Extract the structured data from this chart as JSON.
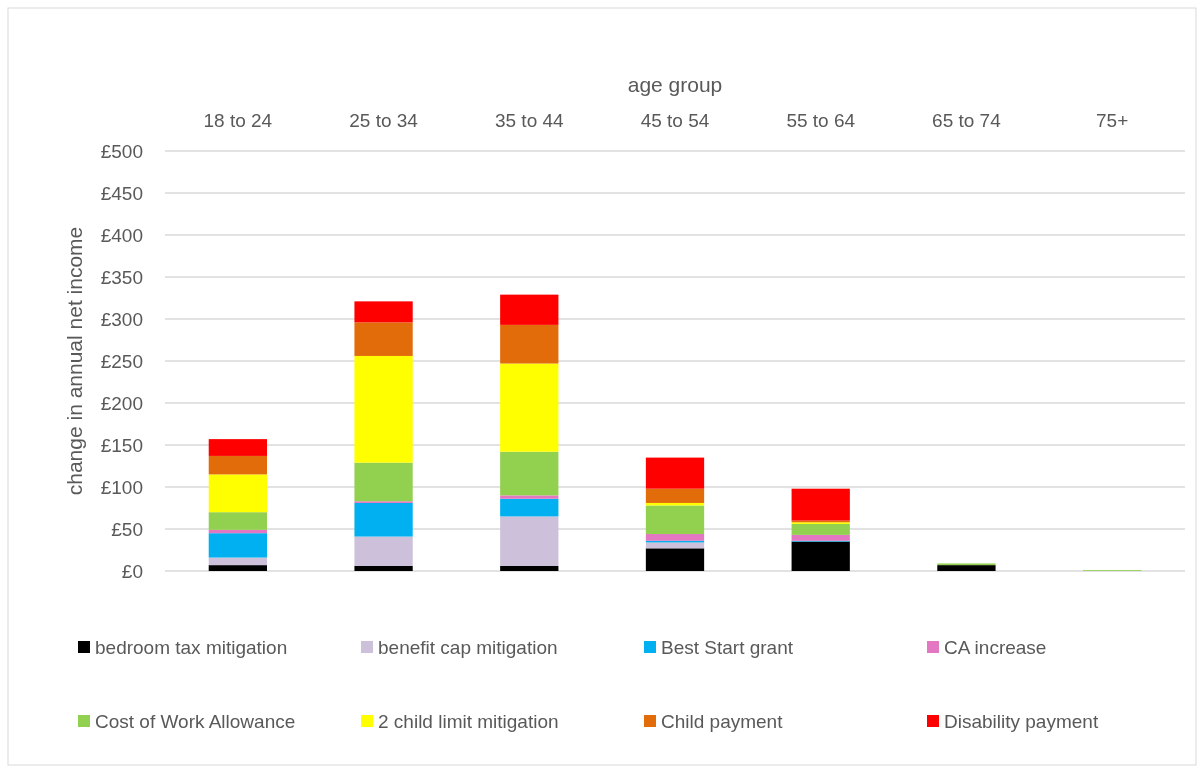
{
  "chart_data": {
    "type": "bar",
    "stacked": true,
    "xlabel": "age group",
    "ylabel": "change in annual net income",
    "categories": [
      "18 to 24",
      "25 to 34",
      "35 to 44",
      "45 to 54",
      "55 to 64",
      "65 to 74",
      "75+"
    ],
    "series": [
      {
        "name": "bedroom tax mitigation",
        "color": "#000000",
        "values": [
          7,
          6,
          6,
          27,
          35,
          7,
          0
        ]
      },
      {
        "name": "benefit cap mitigation",
        "color": "#ccc0da",
        "values": [
          9,
          35,
          59,
          7,
          0,
          0,
          0
        ]
      },
      {
        "name": "Best Start grant",
        "color": "#00b0f0",
        "values": [
          29,
          40,
          21,
          2,
          1,
          0,
          0
        ]
      },
      {
        "name": "CA increase",
        "color": "#e377c2",
        "values": [
          4,
          2,
          4,
          8,
          7,
          0,
          0
        ]
      },
      {
        "name": "Cost of Work Allowance",
        "color": "#92d050",
        "values": [
          21,
          46,
          52,
          34,
          13,
          2,
          1
        ]
      },
      {
        "name": "2 child limit mitigation",
        "color": "#ffff00",
        "values": [
          45,
          127,
          105,
          3,
          2,
          0,
          0
        ]
      },
      {
        "name": "Child payment",
        "color": "#e36c0a",
        "values": [
          22,
          40,
          46,
          17,
          2,
          0,
          0
        ]
      },
      {
        "name": "Disability payment",
        "color": "#ff0000",
        "values": [
          20,
          25,
          36,
          37,
          38,
          0,
          0
        ]
      }
    ],
    "ylim": [
      0,
      500
    ],
    "yticks": [
      {
        "value": 0,
        "label": "£0"
      },
      {
        "value": 50,
        "label": "£50"
      },
      {
        "value": 100,
        "label": "£100"
      },
      {
        "value": 150,
        "label": "£150"
      },
      {
        "value": 200,
        "label": "£200"
      },
      {
        "value": 250,
        "label": "£250"
      },
      {
        "value": 300,
        "label": "£300"
      },
      {
        "value": 350,
        "label": "£350"
      },
      {
        "value": 400,
        "label": "£400"
      },
      {
        "value": 450,
        "label": "£450"
      },
      {
        "value": 500,
        "label": "£500"
      }
    ],
    "grid": "y",
    "legend": "bottom"
  }
}
